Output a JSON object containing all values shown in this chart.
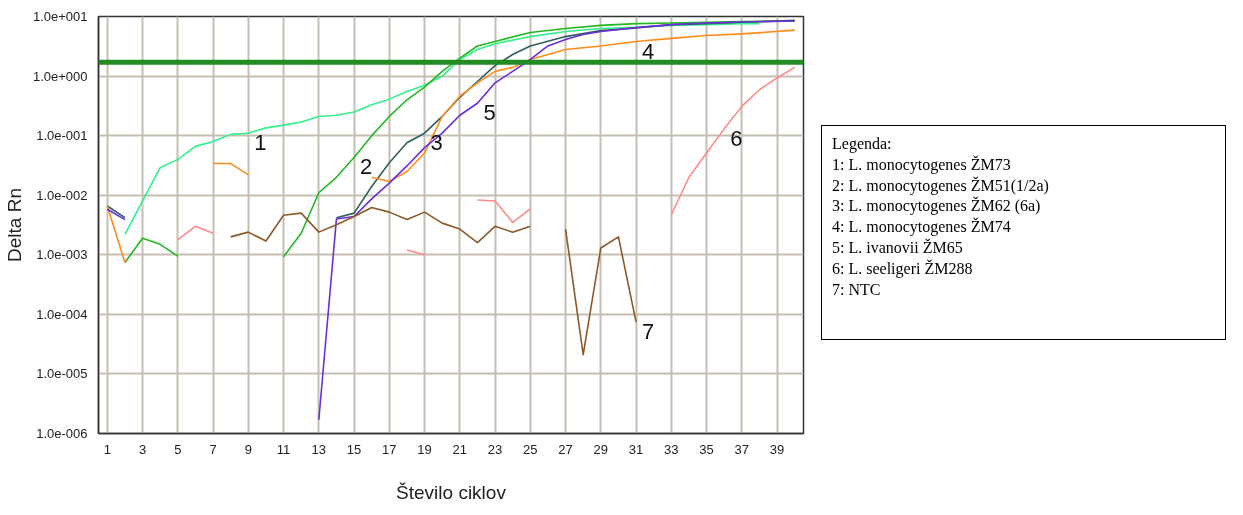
{
  "chart_data": {
    "type": "line",
    "xlabel": "Število ciklov",
    "ylabel": "Delta Rn",
    "log": "y",
    "grid": true,
    "xlim": [
      0.5,
      40.5
    ],
    "xticks": [
      1,
      3,
      5,
      7,
      9,
      11,
      13,
      15,
      17,
      19,
      21,
      23,
      25,
      27,
      29,
      31,
      33,
      35,
      37,
      39
    ],
    "ylim": [
      1e-06,
      10
    ],
    "yticks": [
      {
        "value": 1e-06,
        "label": "1.0e-006"
      },
      {
        "value": 1e-05,
        "label": "1.0e-005"
      },
      {
        "value": 0.0001,
        "label": "1.0e-004"
      },
      {
        "value": 0.001,
        "label": "1.0e-003"
      },
      {
        "value": 0.01,
        "label": "1.0e-002"
      },
      {
        "value": 0.1,
        "label": "1.0e-001"
      },
      {
        "value": 1,
        "label": "1.0e+000"
      },
      {
        "value": 10,
        "label": "1.0e+001"
      }
    ],
    "ref_lines": [
      {
        "axis": "y",
        "value": 1.7,
        "color": "#228b22"
      }
    ],
    "series": [
      {
        "color": "#33f08c",
        "x": [
          2,
          3,
          4,
          5,
          6,
          7,
          8,
          9,
          10,
          11,
          12,
          13,
          14,
          15,
          16,
          17,
          18,
          19,
          20,
          21,
          22,
          23,
          25,
          27,
          29,
          31,
          33,
          35,
          37,
          38
        ],
        "values": [
          0.0022,
          0.008,
          0.029,
          0.04,
          0.066,
          0.08,
          0.105,
          0.11,
          0.135,
          0.15,
          0.17,
          0.21,
          0.22,
          0.25,
          0.33,
          0.41,
          0.55,
          0.7,
          1.0,
          1.9,
          2.8,
          3.5,
          4.6,
          5.6,
          6.3,
          6.6,
          7.1,
          7.3,
          7.6,
          7.6
        ]
      },
      {
        "color": "#22b822",
        "x": [
          2,
          3,
          4,
          5,
          6,
          11,
          12,
          13,
          14,
          15,
          16,
          17,
          18,
          19,
          20,
          21,
          22,
          23,
          25,
          27,
          29,
          31,
          33,
          35,
          37,
          40
        ],
        "values": [
          0.00074,
          0.0019,
          0.0015,
          0.00095,
          null,
          0.00093,
          0.0023,
          0.011,
          0.02,
          0.043,
          0.1,
          0.21,
          0.4,
          0.65,
          1.2,
          2.0,
          3.2,
          3.8,
          5.4,
          6.3,
          7.1,
          7.6,
          7.8,
          8.0,
          8.2,
          8.4
        ]
      },
      {
        "color": "#2f5f5f",
        "x": [
          1,
          2,
          3,
          14,
          15,
          16,
          17,
          18,
          19,
          20,
          21,
          22,
          23,
          24,
          25,
          27,
          29,
          31,
          33,
          35,
          37,
          40
        ],
        "values": [
          0.0066,
          0.0042,
          null,
          0.0042,
          0.005,
          0.014,
          0.035,
          0.076,
          0.11,
          0.21,
          0.44,
          0.81,
          1.5,
          2.3,
          3.2,
          4.6,
          5.8,
          6.4,
          7.3,
          7.6,
          8.0,
          8.6
        ]
      },
      {
        "color": "#ff8c1a",
        "x": [
          1,
          2,
          3,
          7,
          8,
          9,
          10,
          16,
          17,
          18,
          19,
          20,
          21,
          22,
          23,
          24,
          25,
          27,
          29,
          31,
          33,
          35,
          37,
          40
        ],
        "values": [
          0.0066,
          0.00074,
          null,
          0.034,
          0.034,
          0.022,
          null,
          0.02,
          0.017,
          0.025,
          0.051,
          0.21,
          0.46,
          0.77,
          1.2,
          1.4,
          1.9,
          2.8,
          3.2,
          3.8,
          4.3,
          4.8,
          5.1,
          5.9
        ]
      },
      {
        "color": "#6a2fd6",
        "x": [
          1,
          2,
          3,
          13,
          14,
          15,
          16,
          17,
          18,
          19,
          20,
          21,
          22,
          23,
          24,
          25,
          26,
          27,
          28,
          29,
          31,
          33,
          35,
          37,
          40
        ],
        "values": [
          0.0058,
          0.0039,
          null,
          1.7e-06,
          0.004,
          0.0044,
          0.0087,
          0.016,
          0.031,
          0.063,
          0.11,
          0.22,
          0.35,
          0.77,
          1.2,
          1.9,
          3.2,
          4.1,
          5.0,
          5.6,
          6.5,
          7.3,
          7.8,
          8.1,
          8.4
        ]
      },
      {
        "color": "#ff8a8a",
        "x": [
          5,
          6,
          7,
          8,
          18,
          19,
          20,
          22,
          23,
          24,
          25,
          26,
          33,
          34,
          35,
          36,
          37,
          38,
          39,
          40
        ],
        "values": [
          0.0018,
          0.003,
          0.0023,
          null,
          0.0012,
          0.001,
          null,
          0.0083,
          0.008,
          0.0035,
          0.0059,
          null,
          0.0047,
          0.02,
          0.051,
          0.13,
          0.31,
          0.59,
          0.93,
          1.4
        ]
      },
      {
        "color": "#8b5a2b",
        "x": [
          8,
          9,
          10,
          11,
          12,
          13,
          14,
          15,
          16,
          17,
          18,
          19,
          20,
          21,
          22,
          23,
          24,
          25,
          26,
          27,
          28,
          29,
          30,
          31
        ],
        "values": [
          0.002,
          0.0024,
          0.0017,
          0.0046,
          0.005,
          0.0024,
          0.0032,
          0.0044,
          0.0062,
          0.0052,
          0.0039,
          0.0052,
          0.0034,
          0.0027,
          0.0016,
          0.003,
          0.0024,
          0.003,
          null,
          0.0027,
          2.1e-05,
          0.0013,
          0.002,
          7.4e-05
        ]
      }
    ],
    "annotations": [
      {
        "text": "1",
        "x": 9,
        "y": 0.11
      },
      {
        "text": "2",
        "x": 15,
        "y": 0.043
      },
      {
        "text": "3",
        "x": 19,
        "y": 0.11
      },
      {
        "text": "4",
        "x": 31,
        "y": 3.8
      },
      {
        "text": "5",
        "x": 22,
        "y": 0.35
      },
      {
        "text": "6",
        "x": 36,
        "y": 0.13
      },
      {
        "text": "7",
        "x": 31,
        "y": 7.4e-05
      },
      "Legenda:",
      "1: L. monocytogenes ŽM73",
      "2: L. monocytogenes ŽM51(1/2a)",
      "3: L. monocytogenes ŽM62 (6a)",
      "4: L. monocytogenes ŽM74",
      "5: L. ivanovii ŽM65",
      "6: L. seeligeri ŽM288",
      "7: NTC"
    ]
  }
}
